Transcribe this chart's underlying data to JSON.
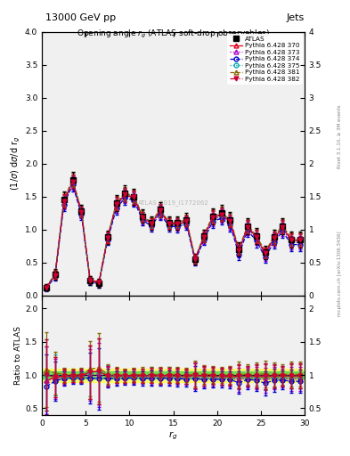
{
  "title_top": "13000 GeV pp",
  "title_right": "Jets",
  "right_label": "Rivet 3.1.10, ≥ 3M events",
  "right_label2": "mcplots.cern.ch [arXiv:1306.3436]",
  "plot_title": "Opening angle r$_g$ (ATLAS soft-drop observables)",
  "watermark": "ATLAS_2019_I1772062",
  "ylabel_main": "(1/σ) dσ/d r_g",
  "ylabel_ratio": "Ratio to ATLAS",
  "xlabel": "r_g",
  "xlim": [
    0,
    30
  ],
  "ylim_main": [
    0,
    4
  ],
  "ylim_ratio": [
    0.4,
    2.2
  ],
  "yticks_main": [
    0,
    0.5,
    1,
    1.5,
    2,
    2.5,
    3,
    3.5,
    4
  ],
  "yticks_ratio": [
    0.5,
    1,
    1.5,
    2
  ],
  "xticks": [
    0,
    5,
    10,
    15,
    20,
    25,
    30
  ],
  "x_data": [
    0.5,
    1.5,
    2.5,
    3.5,
    4.5,
    5.5,
    6.5,
    7.5,
    8.5,
    9.5,
    10.5,
    11.5,
    12.5,
    13.5,
    14.5,
    15.5,
    16.5,
    17.5,
    18.5,
    19.5,
    20.5,
    21.5,
    22.5,
    23.5,
    24.5,
    25.5,
    26.5,
    27.5,
    28.5,
    29.5
  ],
  "atlas_y": [
    0.12,
    0.32,
    1.45,
    1.75,
    1.28,
    0.22,
    0.18,
    0.88,
    1.4,
    1.55,
    1.5,
    1.2,
    1.1,
    1.3,
    1.1,
    1.1,
    1.15,
    0.55,
    0.9,
    1.2,
    1.25,
    1.15,
    0.7,
    1.05,
    0.9,
    0.65,
    0.88,
    1.05,
    0.85,
    0.85
  ],
  "atlas_yerr": [
    0.05,
    0.08,
    0.12,
    0.12,
    0.1,
    0.07,
    0.07,
    0.1,
    0.12,
    0.12,
    0.12,
    0.1,
    0.1,
    0.12,
    0.1,
    0.1,
    0.1,
    0.08,
    0.1,
    0.12,
    0.12,
    0.12,
    0.1,
    0.12,
    0.12,
    0.1,
    0.12,
    0.12,
    0.12,
    0.12
  ],
  "series": [
    {
      "label": "Pythia 6.428 370",
      "color": "#e0001a",
      "marker": "^",
      "linestyle": "-",
      "fillstyle": "none"
    },
    {
      "label": "Pythia 6.428 373",
      "color": "#aa00cc",
      "marker": "^",
      "linestyle": ":",
      "fillstyle": "none"
    },
    {
      "label": "Pythia 6.428 374",
      "color": "#0000cc",
      "marker": "o",
      "linestyle": "--",
      "fillstyle": "none"
    },
    {
      "label": "Pythia 6.428 375",
      "color": "#00aaaa",
      "marker": "o",
      "linestyle": ":",
      "fillstyle": "none"
    },
    {
      "label": "Pythia 6.428 381",
      "color": "#886600",
      "marker": "^",
      "linestyle": "--",
      "fillstyle": "none"
    },
    {
      "label": "Pythia 6.428 382",
      "color": "#cc0033",
      "marker": "v",
      "linestyle": "-.",
      "fillstyle": "full"
    }
  ],
  "mc_y": [
    [
      0.11,
      0.31,
      1.42,
      1.72,
      1.26,
      0.23,
      0.19,
      0.87,
      1.38,
      1.52,
      1.48,
      1.18,
      1.09,
      1.28,
      1.09,
      1.08,
      1.12,
      0.55,
      0.88,
      1.18,
      1.22,
      1.12,
      0.68,
      1.03,
      0.88,
      0.63,
      0.86,
      1.03,
      0.83,
      0.83
    ],
    [
      0.11,
      0.3,
      1.4,
      1.7,
      1.25,
      0.22,
      0.18,
      0.86,
      1.35,
      1.5,
      1.46,
      1.16,
      1.07,
      1.26,
      1.07,
      1.06,
      1.1,
      0.54,
      0.86,
      1.15,
      1.2,
      1.1,
      0.65,
      1.01,
      0.86,
      0.6,
      0.84,
      1.0,
      0.8,
      0.8
    ],
    [
      0.1,
      0.29,
      1.38,
      1.68,
      1.23,
      0.21,
      0.17,
      0.84,
      1.32,
      1.48,
      1.44,
      1.14,
      1.05,
      1.24,
      1.05,
      1.04,
      1.08,
      0.52,
      0.84,
      1.12,
      1.17,
      1.07,
      0.62,
      0.98,
      0.83,
      0.57,
      0.81,
      0.97,
      0.77,
      0.77
    ],
    [
      0.12,
      0.32,
      1.44,
      1.74,
      1.28,
      0.23,
      0.19,
      0.88,
      1.39,
      1.53,
      1.49,
      1.19,
      1.1,
      1.29,
      1.1,
      1.09,
      1.13,
      0.55,
      0.89,
      1.19,
      1.23,
      1.13,
      0.69,
      1.04,
      0.89,
      0.64,
      0.87,
      1.04,
      0.84,
      0.84
    ],
    [
      0.13,
      0.33,
      1.46,
      1.76,
      1.29,
      0.24,
      0.2,
      0.89,
      1.41,
      1.55,
      1.51,
      1.21,
      1.11,
      1.31,
      1.11,
      1.11,
      1.15,
      0.56,
      0.91,
      1.21,
      1.25,
      1.15,
      0.71,
      1.06,
      0.91,
      0.66,
      0.89,
      1.06,
      0.86,
      0.86
    ],
    [
      0.12,
      0.31,
      1.43,
      1.73,
      1.27,
      0.23,
      0.19,
      0.87,
      1.39,
      1.53,
      1.49,
      1.19,
      1.09,
      1.29,
      1.09,
      1.09,
      1.13,
      0.55,
      0.89,
      1.19,
      1.23,
      1.13,
      0.69,
      1.04,
      0.89,
      0.64,
      0.87,
      1.04,
      0.84,
      0.84
    ]
  ],
  "mc_yerr": [
    [
      0.04,
      0.06,
      0.1,
      0.1,
      0.08,
      0.05,
      0.05,
      0.08,
      0.1,
      0.1,
      0.1,
      0.08,
      0.08,
      0.1,
      0.08,
      0.08,
      0.08,
      0.07,
      0.08,
      0.1,
      0.1,
      0.1,
      0.08,
      0.1,
      0.1,
      0.08,
      0.1,
      0.1,
      0.1,
      0.1
    ],
    [
      0.04,
      0.06,
      0.1,
      0.1,
      0.08,
      0.05,
      0.05,
      0.08,
      0.1,
      0.1,
      0.1,
      0.08,
      0.08,
      0.1,
      0.08,
      0.08,
      0.08,
      0.07,
      0.08,
      0.1,
      0.1,
      0.1,
      0.08,
      0.1,
      0.1,
      0.08,
      0.1,
      0.1,
      0.1,
      0.1
    ],
    [
      0.04,
      0.06,
      0.1,
      0.1,
      0.08,
      0.05,
      0.05,
      0.08,
      0.1,
      0.1,
      0.1,
      0.08,
      0.08,
      0.1,
      0.08,
      0.08,
      0.08,
      0.07,
      0.08,
      0.1,
      0.1,
      0.1,
      0.08,
      0.1,
      0.1,
      0.08,
      0.1,
      0.1,
      0.1,
      0.1
    ],
    [
      0.04,
      0.06,
      0.1,
      0.1,
      0.08,
      0.05,
      0.05,
      0.08,
      0.1,
      0.1,
      0.1,
      0.08,
      0.08,
      0.1,
      0.08,
      0.08,
      0.08,
      0.07,
      0.08,
      0.1,
      0.1,
      0.1,
      0.08,
      0.1,
      0.1,
      0.08,
      0.1,
      0.1,
      0.1,
      0.1
    ],
    [
      0.04,
      0.06,
      0.1,
      0.1,
      0.08,
      0.05,
      0.05,
      0.08,
      0.1,
      0.1,
      0.1,
      0.08,
      0.08,
      0.1,
      0.08,
      0.08,
      0.08,
      0.07,
      0.08,
      0.1,
      0.1,
      0.1,
      0.08,
      0.1,
      0.1,
      0.08,
      0.1,
      0.1,
      0.1,
      0.1
    ],
    [
      0.04,
      0.06,
      0.1,
      0.1,
      0.08,
      0.05,
      0.05,
      0.08,
      0.1,
      0.1,
      0.1,
      0.08,
      0.08,
      0.1,
      0.08,
      0.08,
      0.08,
      0.07,
      0.08,
      0.1,
      0.1,
      0.1,
      0.08,
      0.1,
      0.1,
      0.08,
      0.1,
      0.1,
      0.1,
      0.1
    ]
  ],
  "band_green": 0.05,
  "band_yellow": 0.1,
  "bg_color": "#f0f0f0"
}
